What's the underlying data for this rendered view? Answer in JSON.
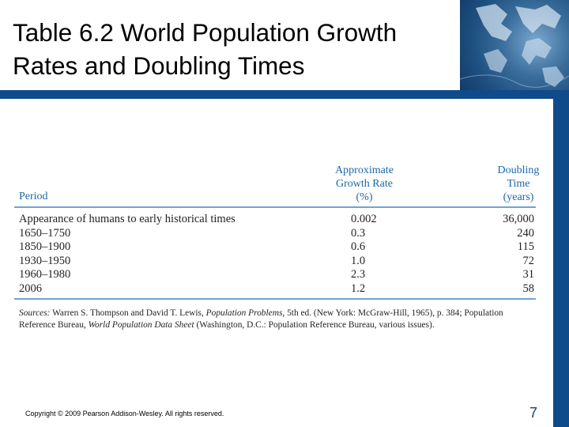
{
  "slide": {
    "title_line1": "Table 6.2 World Population Growth",
    "title_line2": "Rates and Doubling Times"
  },
  "table": {
    "headers": {
      "period": "Period",
      "growth": [
        "Approximate",
        "Growth Rate",
        "(%)"
      ],
      "doubling": [
        "Doubling",
        "Time",
        "(years)"
      ]
    },
    "rows": [
      {
        "period": "Appearance of humans to early historical times",
        "growth": "0.002",
        "doubling": "36,000"
      },
      {
        "period": "1650–1750",
        "growth": "0.3",
        "doubling": "240"
      },
      {
        "period": "1850–1900",
        "growth": "0.6",
        "doubling": "115"
      },
      {
        "period": "1930–1950",
        "growth": "1.0",
        "doubling": "72"
      },
      {
        "period": "1960–1980",
        "growth": "2.3",
        "doubling": "31"
      },
      {
        "period": "2006",
        "growth": "1.2",
        "doubling": "58"
      }
    ],
    "sources": {
      "label": "Sources:",
      "text_a": " Warren S. Thompson and David T. Lewis, ",
      "book1": "Population Problems",
      "text_b": ", 5th ed. (New York: McGraw-Hill, 1965), p. 384; Population Reference Bureau, ",
      "book2": "World Population Data Sheet",
      "text_c": " (Washington, D.C.: Population Reference Bureau, various issues)."
    }
  },
  "footer": {
    "copyright": "Copyright © 2009 Pearson Addison-Wesley. All rights reserved.",
    "page_number": "7"
  },
  "colors": {
    "accent_blue": "#0f4a8a",
    "header_blue": "#1a67a8",
    "rule_blue": "#6fa3d8"
  },
  "icons": {
    "corner_image": "globe-map-image"
  }
}
